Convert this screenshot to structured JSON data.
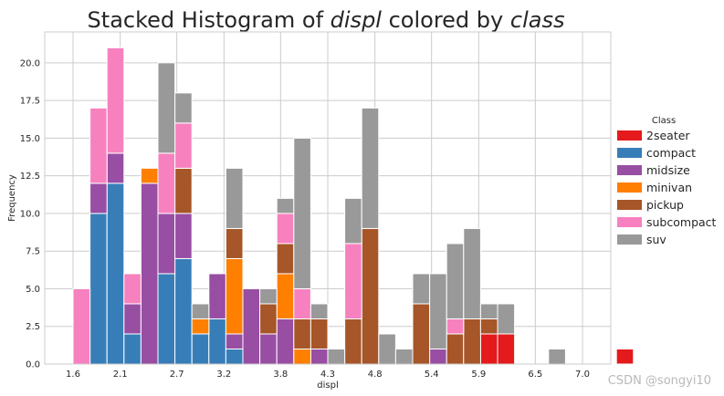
{
  "chart_data": {
    "type": "bar",
    "stacked": true,
    "title_parts": [
      "Stacked Histogram of ",
      "displ",
      " colored by ",
      "class"
    ],
    "xlabel": "displ",
    "ylabel": "Frequency",
    "xlim": [
      1.3,
      7.3
    ],
    "ylim": [
      0,
      22.05
    ],
    "xticks": [
      "1.6",
      "2.1",
      "2.7",
      "3.2",
      "3.8",
      "4.3",
      "4.8",
      "5.4",
      "5.9",
      "6.5",
      "7.0"
    ],
    "yticks": [
      "0.0",
      "2.5",
      "5.0",
      "7.5",
      "10.0",
      "12.5",
      "15.0",
      "17.5",
      "20.0"
    ],
    "grid": true,
    "bin_start": 1.6,
    "bin_width": 0.18,
    "legend": {
      "title": "Class",
      "placement": "center-right"
    },
    "series": [
      {
        "name": "2seater",
        "color": "#e41a1c",
        "values": [
          0,
          0,
          0,
          0,
          0,
          0,
          0,
          0,
          0,
          0,
          0,
          0,
          0,
          0,
          0,
          0,
          0,
          0,
          0,
          0,
          0,
          0,
          0,
          0,
          2,
          2,
          0,
          0,
          0,
          0,
          0,
          0,
          1
        ]
      },
      {
        "name": "compact",
        "color": "#377eb8",
        "values": [
          0,
          10,
          12,
          2,
          0,
          6,
          7,
          2,
          3,
          1,
          0,
          0,
          0,
          0,
          0,
          0,
          0,
          0,
          0,
          0,
          0,
          0,
          0,
          0,
          0,
          0,
          0,
          0,
          0,
          0,
          0,
          0,
          0
        ]
      },
      {
        "name": "midsize",
        "color": "#984ea3",
        "values": [
          0,
          2,
          2,
          2,
          12,
          4,
          3,
          0,
          3,
          1,
          5,
          2,
          3,
          0,
          1,
          0,
          0,
          0,
          0,
          0,
          0,
          1,
          0,
          0,
          0,
          0,
          0,
          0,
          0,
          0,
          0,
          0,
          0
        ]
      },
      {
        "name": "minivan",
        "color": "#ff7f00",
        "values": [
          0,
          0,
          0,
          0,
          1,
          0,
          0,
          1,
          0,
          5,
          0,
          0,
          3,
          1,
          0,
          0,
          0,
          0,
          0,
          0,
          0,
          0,
          0,
          0,
          0,
          0,
          0,
          0,
          0,
          0,
          0,
          0,
          0
        ]
      },
      {
        "name": "pickup",
        "color": "#a65628",
        "values": [
          0,
          0,
          0,
          0,
          0,
          0,
          3,
          0,
          0,
          2,
          0,
          2,
          2,
          2,
          2,
          0,
          3,
          9,
          0,
          0,
          4,
          0,
          2,
          3,
          1,
          0,
          0,
          0,
          0,
          0,
          0,
          0,
          0
        ]
      },
      {
        "name": "subcompact",
        "color": "#f781bf",
        "values": [
          5,
          5,
          7,
          2,
          0,
          4,
          3,
          0,
          0,
          0,
          0,
          0,
          2,
          2,
          0,
          0,
          5,
          0,
          0,
          0,
          0,
          0,
          1,
          0,
          0,
          0,
          0,
          0,
          0,
          0,
          0,
          0,
          0
        ]
      },
      {
        "name": "suv",
        "color": "#999999",
        "values": [
          0,
          0,
          0,
          0,
          0,
          6,
          2,
          1,
          0,
          4,
          0,
          1,
          1,
          10,
          1,
          1,
          3,
          8,
          2,
          1,
          2,
          5,
          5,
          6,
          1,
          2,
          0,
          0,
          1,
          0,
          0,
          0,
          0
        ]
      }
    ]
  },
  "watermark": "CSDN @songyi10"
}
